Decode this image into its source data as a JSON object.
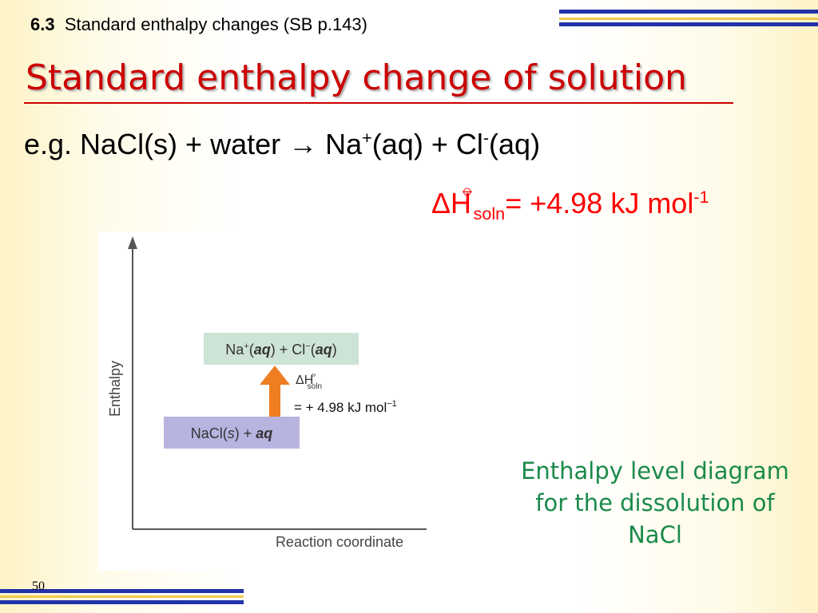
{
  "header": {
    "section": "6.3",
    "title": "Standard enthalpy changes (SB p.143)"
  },
  "slide_title": "Standard enthalpy change of solution",
  "equation": {
    "lhs": "e.g. NaCl(s) + water",
    "arrow": "→",
    "p1": "Na",
    "p1_sup": "+",
    "p2": "(aq) + Cl",
    "p2_sup": "-",
    "p3": "(aq)"
  },
  "enthalpy": {
    "symbol": "ΔH",
    "standard": "⦵",
    "sub": "soln",
    "value": "= +4.98 kJ mol",
    "sup": "-1"
  },
  "diagram": {
    "y_axis": "Enthalpy",
    "x_axis": "Reaction coordinate",
    "products": [
      "Na",
      "+",
      "(",
      "aq",
      ") + Cl",
      "−",
      "(",
      "aq",
      ")"
    ],
    "reactants": [
      "NaCl(",
      "s",
      ") + ",
      "aq"
    ],
    "dh_symbol": "ΔH",
    "dh_standard": "⦵",
    "dh_sub": "soln",
    "dh_value": "= + 4.98 kJ mol",
    "dh_sup": "−1"
  },
  "caption": [
    "Enthalpy level diagram",
    "for the dissolution of",
    "NaCl"
  ],
  "page_number": "50"
}
